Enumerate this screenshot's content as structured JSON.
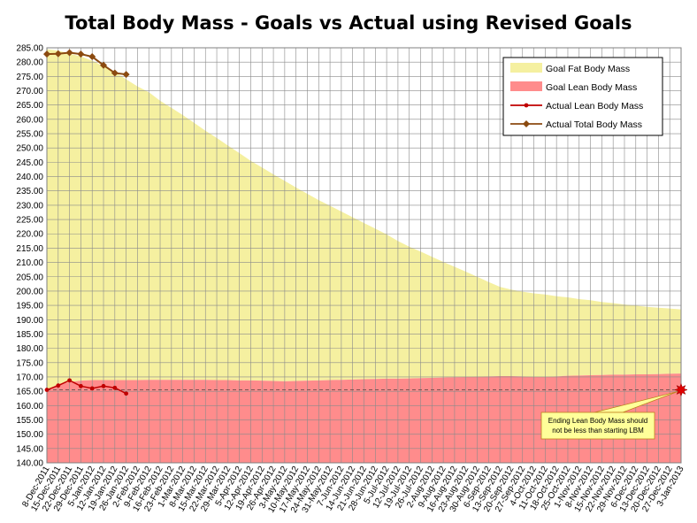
{
  "chart_data": {
    "type": "area",
    "title": "Total Body Mass - Goals vs Actual using Revised Goals",
    "xlabel": "",
    "ylabel": "",
    "ylim": [
      140,
      285
    ],
    "y_step": 5,
    "grid": true,
    "legend_position": "top-right",
    "x_dates": [
      "8-Dec-2011",
      "15-Dec-2011",
      "22-Dec-2011",
      "29-Dec-2011",
      "5-Jan-2012",
      "12-Jan-2012",
      "19-Jan-2012",
      "26-Jan-2012",
      "2-Feb-2012",
      "9-Feb-2012",
      "16-Feb-2012",
      "23-Feb-2012",
      "1-Mar-2012",
      "8-Mar-2012",
      "15-Mar-2012",
      "22-Mar-2012",
      "29-Mar-2012",
      "5-Apr-2012",
      "12-Apr-2012",
      "19-Apr-2012",
      "26-Apr-2012",
      "3-May-2012",
      "10-May-2012",
      "17-May-2012",
      "24-May-2012",
      "31-May-2012",
      "7-Jun-2012",
      "14-Jun-2012",
      "21-Jun-2012",
      "28-Jun-2012",
      "5-Jul-2012",
      "12-Jul-2012",
      "19-Jul-2012",
      "26-Jul-2012",
      "2-Aug-2012",
      "9-Aug-2012",
      "16-Aug-2012",
      "23-Aug-2012",
      "30-Aug-2012",
      "6-Sep-2012",
      "13-Sep-2012",
      "20-Sep-2012",
      "27-Sep-2012",
      "4-Oct-2012",
      "11-Oct-2012",
      "18-Oct-2012",
      "25-Oct-2012",
      "1-Nov-2012",
      "8-Nov-2012",
      "15-Nov-2012",
      "22-Nov-2012",
      "29-Nov-2012",
      "6-Dec-2012",
      "13-Dec-2012",
      "20-Dec-2012",
      "27-Dec-2012",
      "3-Jan-2013"
    ],
    "goal_total_mass": [
      284.5,
      284.0,
      283.0,
      282.0,
      280.5,
      278.5,
      276.5,
      274.0,
      271.5,
      269.5,
      266.5,
      264.0,
      261.5,
      258.8,
      256.0,
      253.5,
      250.8,
      248.2,
      245.5,
      243.2,
      240.8,
      238.5,
      236.2,
      234.0,
      231.8,
      229.8,
      227.8,
      225.8,
      223.8,
      221.8,
      219.8,
      217.5,
      215.5,
      213.8,
      212.0,
      210.2,
      208.5,
      206.8,
      205.0,
      203.2,
      201.5,
      200.5,
      199.8,
      199.2,
      198.8,
      198.2,
      197.8,
      197.2,
      196.8,
      196.2,
      195.8,
      195.3,
      194.9,
      194.5,
      194.2,
      193.9,
      193.6
    ],
    "series": [
      {
        "name": "Goal Fat Body Mass",
        "color": "#f5f0a0",
        "values": [
          119.0,
          116.5,
          114.8,
          113.3,
          111.6,
          109.6,
          107.6,
          105.1,
          102.6,
          100.5,
          97.5,
          95.0,
          92.5,
          89.8,
          87.0,
          84.6,
          81.9,
          79.4,
          76.7,
          74.5,
          72.2,
          70.0,
          67.6,
          65.3,
          63.0,
          60.9,
          58.8,
          56.7,
          54.6,
          52.5,
          50.4,
          48.1,
          46.0,
          44.2,
          42.3,
          40.4,
          38.6,
          36.8,
          34.9,
          33.0,
          31.2,
          30.2,
          29.6,
          29.2,
          28.8,
          28.0,
          27.4,
          26.7,
          26.2,
          25.5,
          25.0,
          24.5,
          24.0,
          23.6,
          23.2,
          22.8,
          22.4
        ]
      },
      {
        "name": "Goal Lean Body Mass",
        "color": "#ff8c8c",
        "values": [
          165.5,
          167.5,
          168.2,
          168.7,
          168.9,
          168.9,
          168.9,
          168.9,
          168.9,
          169.0,
          169.0,
          169.0,
          169.0,
          169.0,
          169.0,
          168.9,
          168.9,
          168.8,
          168.8,
          168.7,
          168.6,
          168.5,
          168.6,
          168.7,
          168.8,
          168.9,
          169.0,
          169.1,
          169.2,
          169.3,
          169.4,
          169.4,
          169.5,
          169.6,
          169.7,
          169.8,
          169.9,
          170.0,
          170.1,
          170.2,
          170.3,
          170.3,
          170.2,
          170.0,
          170.0,
          170.2,
          170.4,
          170.5,
          170.6,
          170.7,
          170.8,
          170.8,
          170.9,
          170.9,
          171.0,
          171.1,
          171.2
        ]
      },
      {
        "name": "Actual Lean Body Mass",
        "color": "#c00000",
        "values": [
          165.5,
          167.0,
          168.8,
          166.8,
          166.0,
          166.8,
          166.2,
          164.2
        ]
      },
      {
        "name": "Actual Total Body Mass",
        "color": "#8b4a10",
        "values": [
          282.8,
          282.9,
          283.3,
          282.8,
          281.9,
          278.9,
          276.2,
          275.7
        ]
      }
    ],
    "reference_line": {
      "value": 165.5
    },
    "annotation": {
      "line1": "Ending Lean Body Mass should",
      "line2": "not be less than starting LBM",
      "target_date": "3-Jan-2013",
      "target_value": 165.5
    }
  }
}
